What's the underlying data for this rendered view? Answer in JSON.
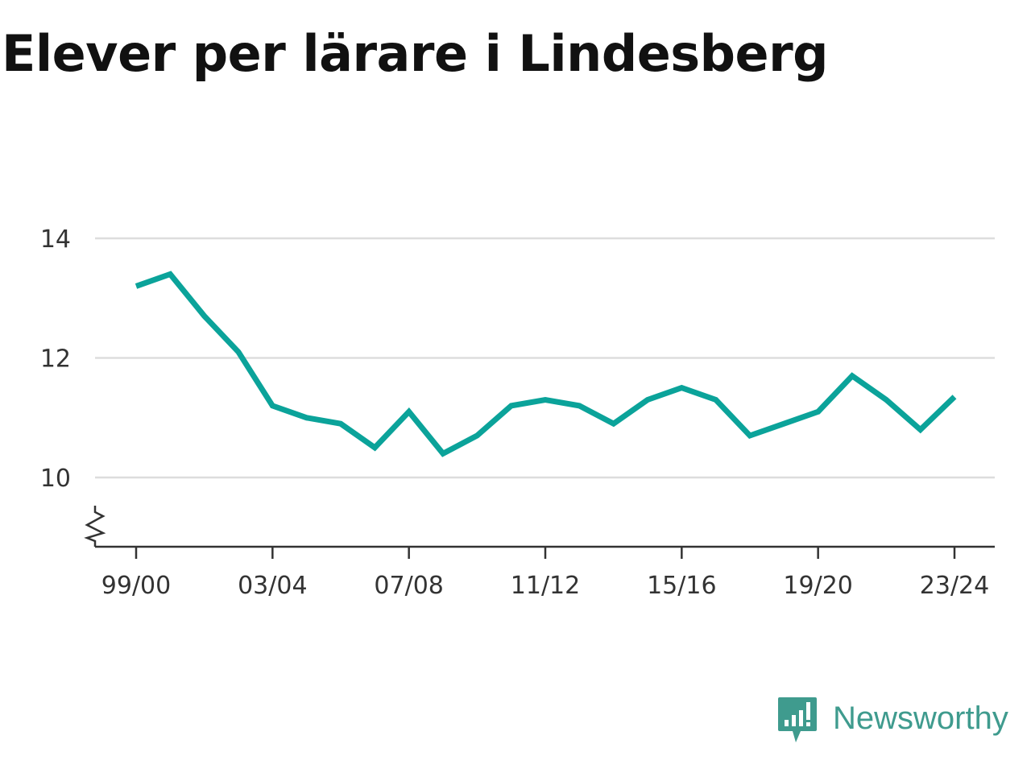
{
  "title": "Elever per lärare i Lindesberg",
  "brand": {
    "name": "Newsworthy",
    "icon": "newsworthy-logo-icon",
    "color": "#3f9b8e"
  },
  "chart_data": {
    "type": "line",
    "title": "Elever per lärare i Lindesberg",
    "xlabel": "",
    "ylabel": "",
    "x": [
      "99/00",
      "00/01",
      "01/02",
      "02/03",
      "03/04",
      "04/05",
      "05/06",
      "06/07",
      "07/08",
      "08/09",
      "09/10",
      "10/11",
      "11/12",
      "12/13",
      "13/14",
      "14/15",
      "15/16",
      "16/17",
      "17/18",
      "18/19",
      "19/20",
      "20/21",
      "21/22",
      "22/23",
      "23/24"
    ],
    "x_tick_labels": [
      "99/00",
      "03/04",
      "07/08",
      "11/12",
      "15/16",
      "19/20",
      "23/24"
    ],
    "y_tick_labels": [
      "10",
      "12",
      "14"
    ],
    "ylim": [
      10,
      14
    ],
    "axis_break": true,
    "grid": true,
    "line_color": "#0ba39a",
    "series": [
      {
        "values": [
          13.2,
          13.4,
          12.7,
          12.1,
          11.2,
          11.0,
          10.9,
          10.5,
          11.1,
          10.4,
          10.7,
          11.2,
          11.3,
          11.2,
          10.9,
          11.3,
          11.5,
          11.3,
          10.7,
          10.9,
          11.1,
          11.7,
          11.3,
          10.8,
          11.35
        ]
      }
    ]
  }
}
